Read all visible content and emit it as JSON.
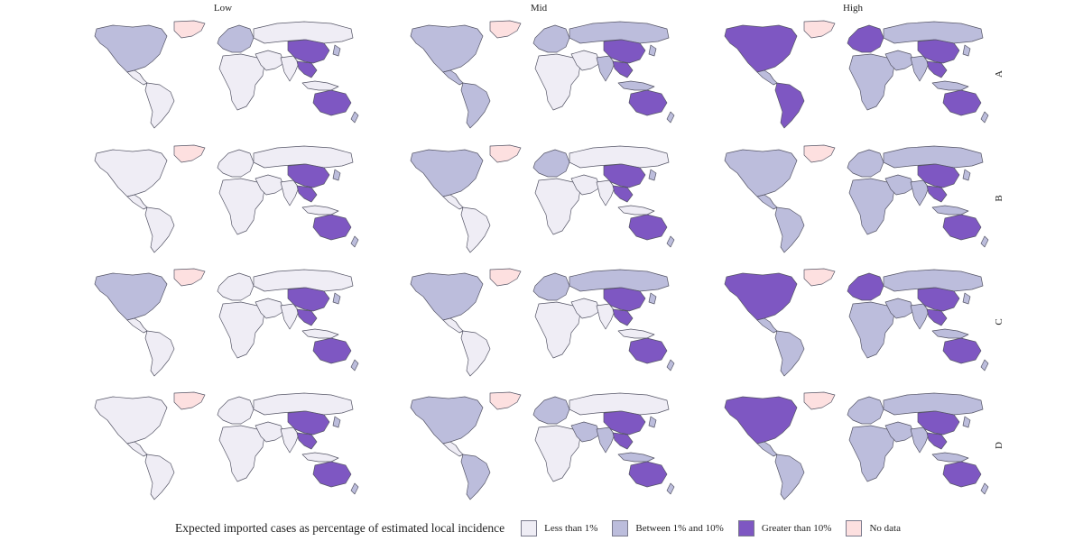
{
  "columns": [
    "Low",
    "Mid",
    "High"
  ],
  "rows": [
    "A",
    "B",
    "C",
    "D"
  ],
  "legend": {
    "title": "Expected imported cases as percentage of estimated local incidence",
    "items": [
      {
        "key": "lt1",
        "label": "Less than 1%",
        "color": "#efedf5"
      },
      {
        "key": "mid",
        "label": "Between 1% and 10%",
        "color": "#bcbddc"
      },
      {
        "key": "gt10",
        "label": "Greater than 10%",
        "color": "#7e57c2"
      },
      {
        "key": "nd",
        "label": "No data",
        "color": "#fde0e0"
      }
    ]
  },
  "regions": [
    "north-america",
    "greenland",
    "central-america",
    "south-america",
    "europe",
    "russia",
    "africa",
    "middle-east",
    "india",
    "china",
    "southeast-asia",
    "indonesia",
    "australia",
    "new-zealand",
    "japan"
  ],
  "map_grid": {
    "A": {
      "Low": {
        "north-america": "mid",
        "greenland": "nd",
        "central-america": "lt1",
        "south-america": "lt1",
        "europe": "mid",
        "russia": "lt1",
        "africa": "lt1",
        "middle-east": "lt1",
        "india": "lt1",
        "china": "gt10",
        "southeast-asia": "gt10",
        "indonesia": "lt1",
        "australia": "gt10",
        "new-zealand": "mid",
        "japan": "mid"
      },
      "Mid": {
        "north-america": "mid",
        "greenland": "nd",
        "central-america": "mid",
        "south-america": "mid",
        "europe": "mid",
        "russia": "mid",
        "africa": "lt1",
        "middle-east": "lt1",
        "india": "mid",
        "china": "gt10",
        "southeast-asia": "gt10",
        "indonesia": "mid",
        "australia": "gt10",
        "new-zealand": "mid",
        "japan": "mid"
      },
      "High": {
        "north-america": "gt10",
        "greenland": "nd",
        "central-america": "mid",
        "south-america": "gt10",
        "europe": "gt10",
        "russia": "mid",
        "africa": "mid",
        "middle-east": "mid",
        "india": "mid",
        "china": "gt10",
        "southeast-asia": "gt10",
        "indonesia": "mid",
        "australia": "gt10",
        "new-zealand": "mid",
        "japan": "mid"
      }
    },
    "B": {
      "Low": {
        "north-america": "lt1",
        "greenland": "nd",
        "central-america": "lt1",
        "south-america": "lt1",
        "europe": "lt1",
        "russia": "lt1",
        "africa": "lt1",
        "middle-east": "lt1",
        "india": "lt1",
        "china": "gt10",
        "southeast-asia": "gt10",
        "indonesia": "lt1",
        "australia": "gt10",
        "new-zealand": "mid",
        "japan": "mid"
      },
      "Mid": {
        "north-america": "mid",
        "greenland": "nd",
        "central-america": "lt1",
        "south-america": "lt1",
        "europe": "mid",
        "russia": "lt1",
        "africa": "lt1",
        "middle-east": "lt1",
        "india": "lt1",
        "china": "gt10",
        "southeast-asia": "gt10",
        "indonesia": "lt1",
        "australia": "gt10",
        "new-zealand": "mid",
        "japan": "mid"
      },
      "High": {
        "north-america": "mid",
        "greenland": "nd",
        "central-america": "mid",
        "south-america": "mid",
        "europe": "mid",
        "russia": "mid",
        "africa": "mid",
        "middle-east": "mid",
        "india": "mid",
        "china": "gt10",
        "southeast-asia": "gt10",
        "indonesia": "mid",
        "australia": "gt10",
        "new-zealand": "mid",
        "japan": "mid"
      }
    },
    "C": {
      "Low": {
        "north-america": "mid",
        "greenland": "nd",
        "central-america": "lt1",
        "south-america": "lt1",
        "europe": "lt1",
        "russia": "lt1",
        "africa": "lt1",
        "middle-east": "lt1",
        "india": "lt1",
        "china": "gt10",
        "southeast-asia": "gt10",
        "indonesia": "lt1",
        "australia": "gt10",
        "new-zealand": "mid",
        "japan": "mid"
      },
      "Mid": {
        "north-america": "mid",
        "greenland": "nd",
        "central-america": "lt1",
        "south-america": "lt1",
        "europe": "mid",
        "russia": "mid",
        "africa": "lt1",
        "middle-east": "lt1",
        "india": "lt1",
        "china": "gt10",
        "southeast-asia": "gt10",
        "indonesia": "lt1",
        "australia": "gt10",
        "new-zealand": "mid",
        "japan": "mid"
      },
      "High": {
        "north-america": "gt10",
        "greenland": "nd",
        "central-america": "mid",
        "south-america": "mid",
        "europe": "gt10",
        "russia": "mid",
        "africa": "mid",
        "middle-east": "mid",
        "india": "mid",
        "china": "gt10",
        "southeast-asia": "gt10",
        "indonesia": "mid",
        "australia": "gt10",
        "new-zealand": "mid",
        "japan": "mid"
      }
    },
    "D": {
      "Low": {
        "north-america": "lt1",
        "greenland": "nd",
        "central-america": "lt1",
        "south-america": "lt1",
        "europe": "lt1",
        "russia": "lt1",
        "africa": "lt1",
        "middle-east": "lt1",
        "india": "lt1",
        "china": "gt10",
        "southeast-asia": "gt10",
        "indonesia": "lt1",
        "australia": "gt10",
        "new-zealand": "mid",
        "japan": "mid"
      },
      "Mid": {
        "north-america": "mid",
        "greenland": "nd",
        "central-america": "lt1",
        "south-america": "mid",
        "europe": "mid",
        "russia": "lt1",
        "africa": "lt1",
        "middle-east": "mid",
        "india": "mid",
        "china": "gt10",
        "southeast-asia": "gt10",
        "indonesia": "mid",
        "australia": "gt10",
        "new-zealand": "mid",
        "japan": "mid"
      },
      "High": {
        "north-america": "gt10",
        "greenland": "nd",
        "central-america": "mid",
        "south-america": "mid",
        "europe": "mid",
        "russia": "mid",
        "africa": "mid",
        "middle-east": "mid",
        "india": "mid",
        "china": "gt10",
        "southeast-asia": "gt10",
        "indonesia": "mid",
        "australia": "gt10",
        "new-zealand": "mid",
        "japan": "mid"
      }
    }
  }
}
